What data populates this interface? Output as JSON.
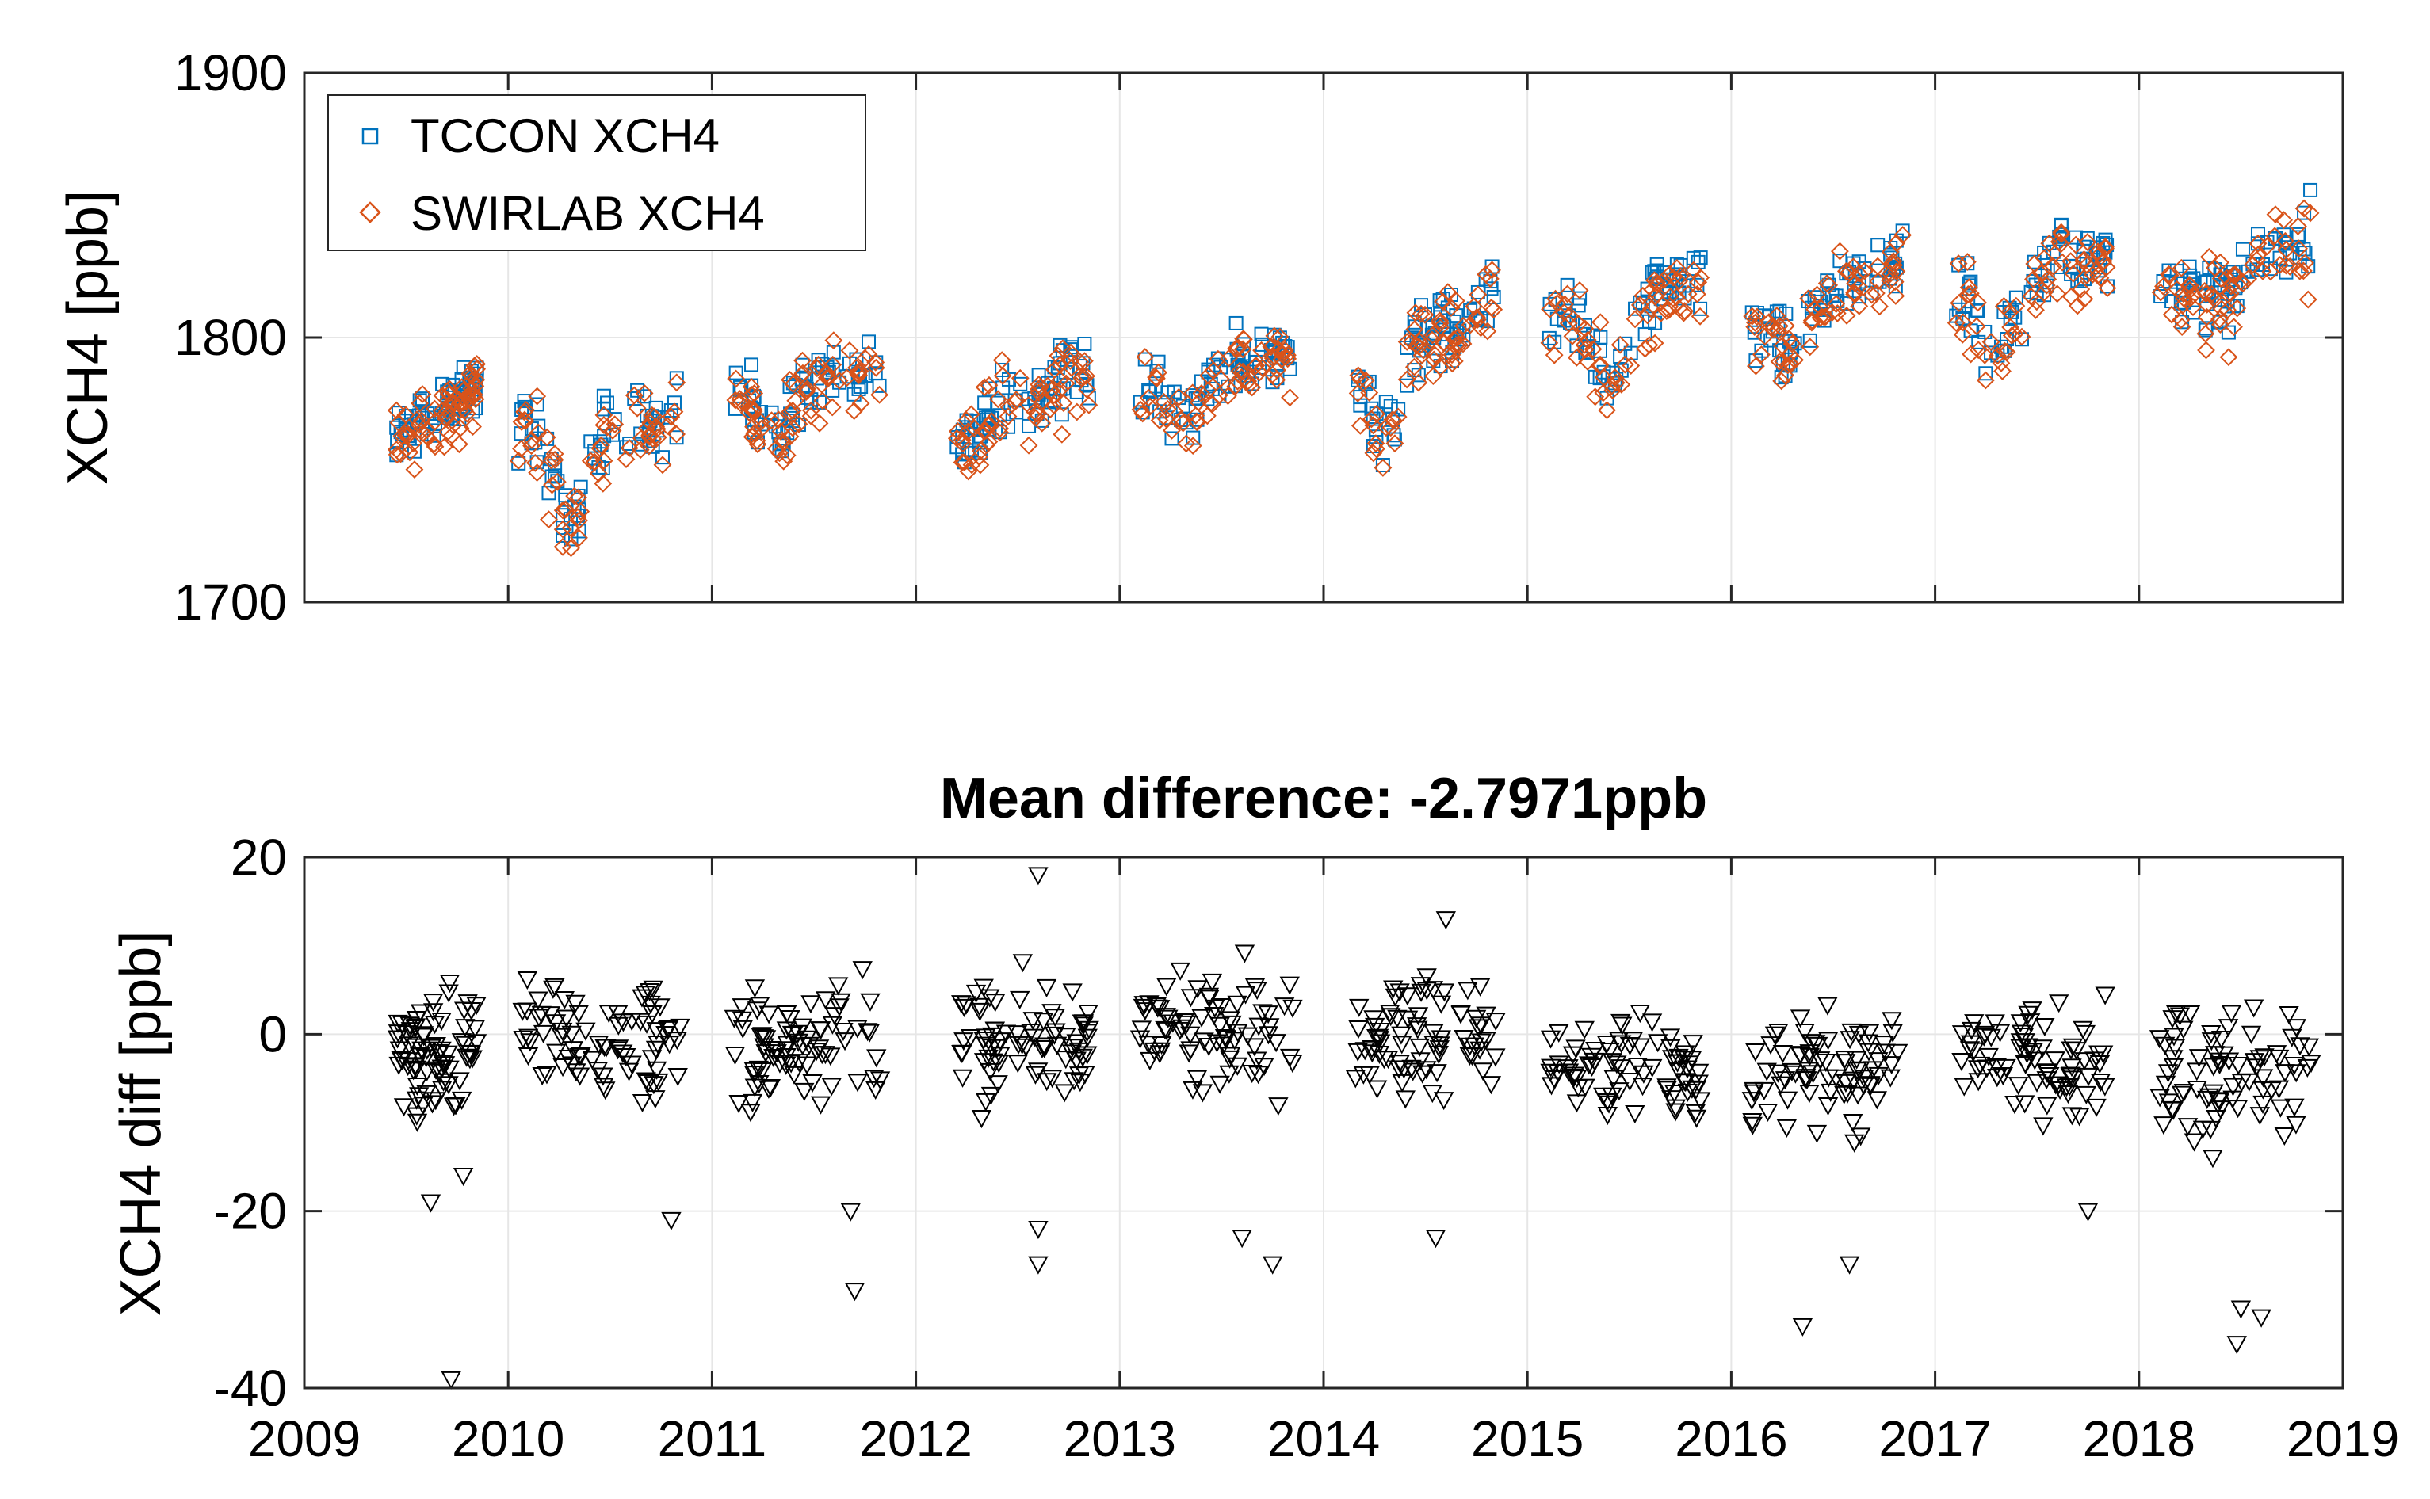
{
  "chart_data": [
    {
      "type": "scatter",
      "panel": "top",
      "title": "",
      "xlabel": "",
      "ylabel": "XCH4 [ppb]",
      "xlim": [
        2009,
        2019
      ],
      "ylim": [
        1700,
        1900
      ],
      "yticks": [
        1700,
        1800,
        1900
      ],
      "xticks": [
        2009,
        2010,
        2011,
        2012,
        2013,
        2014,
        2015,
        2016,
        2017,
        2018,
        2019
      ],
      "show_x_tick_labels": false,
      "grid": true,
      "legend_location": "top-left",
      "series": [
        {
          "name": "TCCON XCH4",
          "marker": "square",
          "color": "#0072BD"
        },
        {
          "name": "SWIRLAB XCH4",
          "marker": "diamond",
          "color": "#D95319"
        }
      ],
      "seasons": [
        {
          "x": [
            2009.45,
            2009.85
          ],
          "base": [
            1762,
            1782
          ],
          "spread": 8
        },
        {
          "x": [
            2010.05,
            2010.85
          ],
          "base": [
            1768,
            1770
          ],
          "dip": [
            2010.3,
            1730
          ],
          "spread": 12
        },
        {
          "x": [
            2011.1,
            2011.85
          ],
          "base": [
            1780,
            1790
          ],
          "dip": [
            2011.3,
            1760
          ],
          "spread": 10
        },
        {
          "x": [
            2012.2,
            2012.85
          ],
          "base": [
            1760,
            1790
          ],
          "spread": 12
        },
        {
          "x": [
            2013.1,
            2013.85
          ],
          "base": [
            1780,
            1795
          ],
          "dip": [
            2013.3,
            1768
          ],
          "spread": 10
        },
        {
          "x": [
            2014.15,
            2014.85
          ],
          "base": [
            1790,
            1815
          ],
          "dip": [
            2014.3,
            1760
          ],
          "spread": 12
        },
        {
          "x": [
            2015.1,
            2015.85
          ],
          "base": [
            1805,
            1825
          ],
          "dip": [
            2015.4,
            1785
          ],
          "spread": 10
        },
        {
          "x": [
            2016.1,
            2016.85
          ],
          "base": [
            1805,
            1830
          ],
          "dip": [
            2016.3,
            1795
          ],
          "spread": 12
        },
        {
          "x": [
            2017.1,
            2017.85
          ],
          "base": [
            1815,
            1835
          ],
          "dip": [
            2017.3,
            1795
          ],
          "spread": 12
        },
        {
          "x": [
            2018.1,
            2018.85
          ],
          "base": [
            1815,
            1840
          ],
          "dip": [
            2018.4,
            1815
          ],
          "spread": 12
        }
      ]
    },
    {
      "type": "scatter",
      "panel": "bottom",
      "title": "Mean difference: -2.7971ppb",
      "xlabel": "",
      "ylabel": "XCH4 diff [ppb]",
      "xlim": [
        2009,
        2019
      ],
      "ylim": [
        -40,
        20
      ],
      "yticks": [
        -40,
        -20,
        0,
        20
      ],
      "xticks": [
        2009,
        2010,
        2011,
        2012,
        2013,
        2014,
        2015,
        2016,
        2017,
        2018,
        2019
      ],
      "xtick_labels": [
        "2009",
        "2010",
        "2011",
        "2012",
        "2013",
        "2014",
        "2015",
        "2016",
        "2017",
        "2018",
        "2019"
      ],
      "grid": true,
      "series": [
        {
          "name": "",
          "marker": "triangle-down",
          "color": "#000000"
        }
      ],
      "outliers": [
        [
          2009.72,
          -39
        ],
        [
          2009.62,
          -19
        ],
        [
          2009.78,
          -16
        ],
        [
          2010.8,
          -21
        ],
        [
          2011.7,
          -29
        ],
        [
          2011.68,
          -20
        ],
        [
          2012.6,
          18
        ],
        [
          2012.6,
          -26
        ],
        [
          2012.6,
          -22
        ],
        [
          2013.75,
          -26
        ],
        [
          2013.6,
          -23
        ],
        [
          2014.55,
          -23
        ],
        [
          2014.6,
          13
        ],
        [
          2016.35,
          -33
        ],
        [
          2016.58,
          -26
        ],
        [
          2017.75,
          -20
        ],
        [
          2018.48,
          -35
        ],
        [
          2018.5,
          -31
        ],
        [
          2018.6,
          -32
        ]
      ],
      "seasons": [
        {
          "x": [
            2009.45,
            2009.85
          ],
          "center": -2,
          "spread": 6
        },
        {
          "x": [
            2010.05,
            2010.85
          ],
          "center": 0,
          "spread": 6
        },
        {
          "x": [
            2011.1,
            2011.85
          ],
          "center": -2,
          "spread": 7
        },
        {
          "x": [
            2012.2,
            2012.85
          ],
          "center": -1,
          "spread": 6
        },
        {
          "x": [
            2013.1,
            2013.85
          ],
          "center": 0,
          "spread": 6
        },
        {
          "x": [
            2014.15,
            2014.85
          ],
          "center": 0,
          "spread": 6
        },
        {
          "x": [
            2015.1,
            2015.85
          ],
          "center": -4,
          "spread": 6
        },
        {
          "x": [
            2016.1,
            2016.85
          ],
          "center": -4,
          "spread": 6
        },
        {
          "x": [
            2017.1,
            2017.85
          ],
          "center": -3,
          "spread": 6
        },
        {
          "x": [
            2018.1,
            2018.85
          ],
          "center": -4,
          "spread": 7
        }
      ]
    }
  ]
}
